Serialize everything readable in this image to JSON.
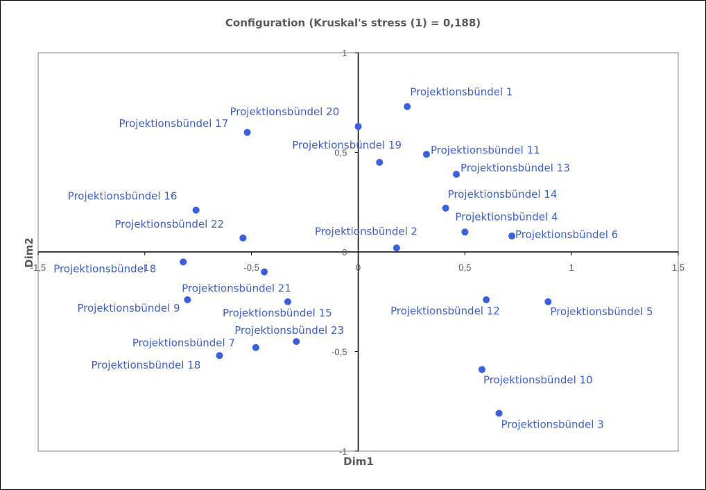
{
  "chart_data": {
    "type": "scatter",
    "title": "Configuration (Kruskal's stress (1) = 0,188)",
    "xlabel": "Dim1",
    "ylabel": "Dim2",
    "xlim": [
      -1.5,
      1.5
    ],
    "ylim": [
      -1,
      1
    ],
    "x_ticks": [
      "-1,5",
      "-1",
      "-0,5",
      "0",
      "0,5",
      "1",
      "1,5"
    ],
    "y_ticks": [
      "1",
      "0,5",
      "0",
      "-0,5",
      "-1"
    ],
    "marker_color": "#3a5fe0",
    "points": [
      {
        "label": "Projektionsbündel  1",
        "x": 0.23,
        "y": 0.73
      },
      {
        "label": "Projektionsbündel  2",
        "x": 0.18,
        "y": 0.02
      },
      {
        "label": "Projektionsbündel  3",
        "x": 0.66,
        "y": -0.81
      },
      {
        "label": "Projektionsbündel  4",
        "x": 0.5,
        "y": 0.1
      },
      {
        "label": "Projektionsbündel  5",
        "x": 0.89,
        "y": -0.25
      },
      {
        "label": "Projektionsbündel  6",
        "x": 0.72,
        "y": 0.08
      },
      {
        "label": "Projektionsbündel  7",
        "x": -0.48,
        "y": -0.48
      },
      {
        "label": "Projektionsbündel  8",
        "x": -0.82,
        "y": -0.05
      },
      {
        "label": "Projektionsbündel  9",
        "x": -0.8,
        "y": -0.24
      },
      {
        "label": "Projektionsbündel  10",
        "x": 0.58,
        "y": -0.59
      },
      {
        "label": "Projektionsbündel  11",
        "x": 0.32,
        "y": 0.49
      },
      {
        "label": "Projektionsbündel  12",
        "x": 0.6,
        "y": -0.24
      },
      {
        "label": "Projektionsbündel  13",
        "x": 0.46,
        "y": 0.39
      },
      {
        "label": "Projektionsbündel  14",
        "x": 0.41,
        "y": 0.22
      },
      {
        "label": "Projektionsbündel  15",
        "x": -0.33,
        "y": -0.25
      },
      {
        "label": "Projektionsbündel  16",
        "x": -0.76,
        "y": 0.21
      },
      {
        "label": "Projektionsbündel  17",
        "x": -0.52,
        "y": 0.6
      },
      {
        "label": "Projektionsbündel  18",
        "x": -0.65,
        "y": -0.52
      },
      {
        "label": "Projektionsbündel  19",
        "x": 0.1,
        "y": 0.45
      },
      {
        "label": "Projektionsbündel  20",
        "x": 0.0,
        "y": 0.63
      },
      {
        "label": "Projektionsbündel  21",
        "x": -0.44,
        "y": -0.1
      },
      {
        "label": "Projektionsbündel  22",
        "x": -0.54,
        "y": 0.07
      },
      {
        "label": "Projektionsbündel  23",
        "x": -0.29,
        "y": -0.45
      }
    ]
  }
}
